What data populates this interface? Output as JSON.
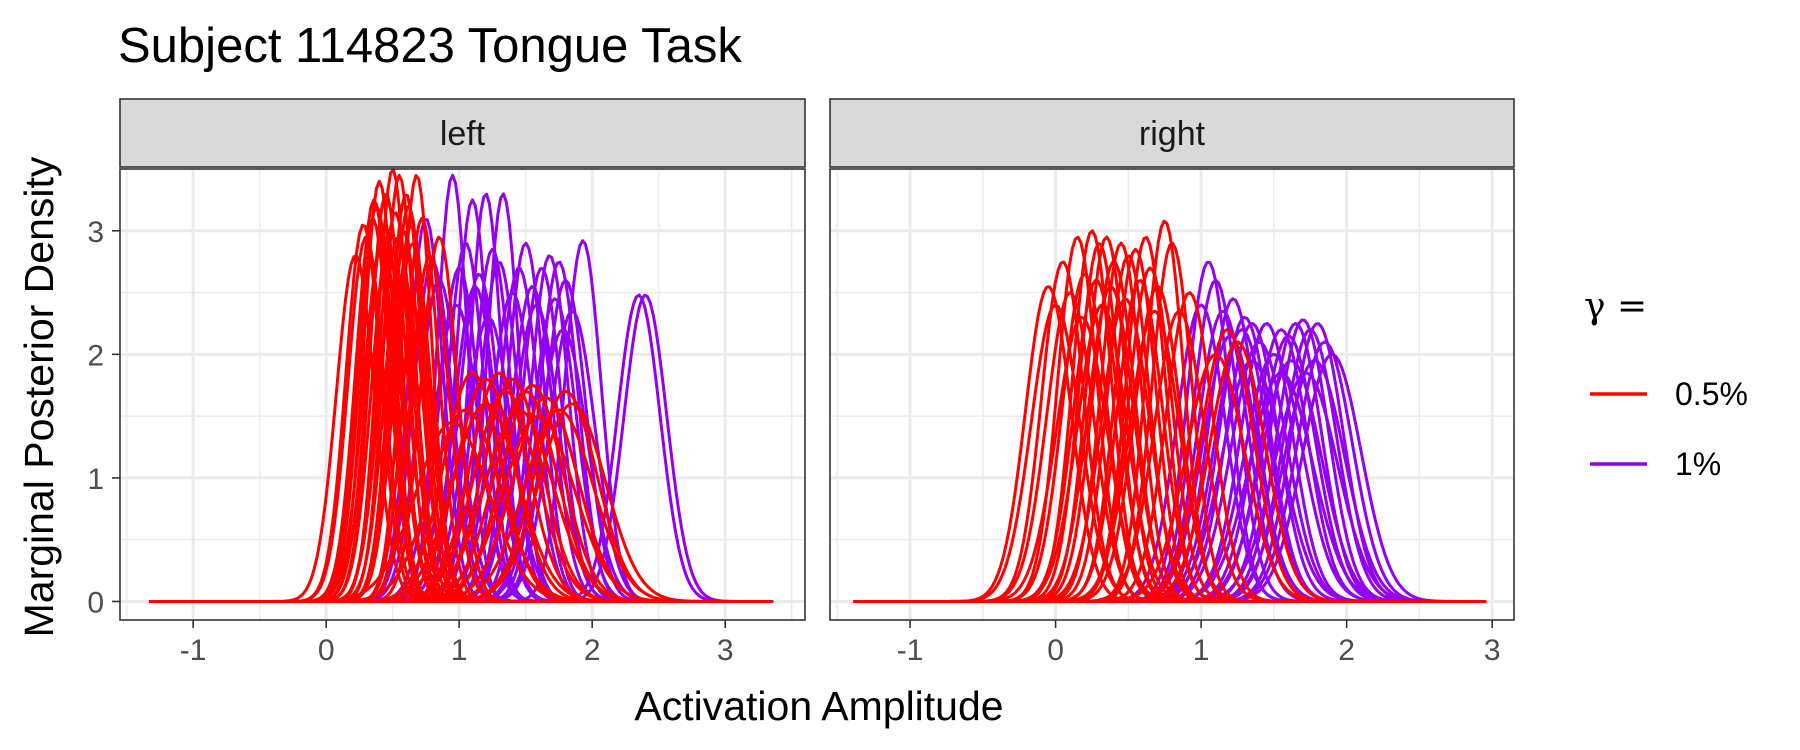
{
  "chart_data": {
    "type": "line",
    "title": "Subject 114823 Tongue Task",
    "xlabel": "Activation Amplitude",
    "ylabel": "Marginal Posterior Density",
    "ylim": [
      -0.15,
      3.5
    ],
    "yticks": [
      0,
      1,
      2,
      3
    ],
    "ytick_labels": [
      "0",
      "1",
      "2",
      "3"
    ],
    "grid": true,
    "legend": {
      "title": "γ =",
      "position": "right",
      "entries": [
        {
          "label": "0.5%",
          "color": "#ff0000"
        },
        {
          "label": "1%",
          "color": "#9400f0"
        }
      ]
    },
    "panels": [
      {
        "strip": "left",
        "xlim": [
          -1.55,
          3.6
        ],
        "xticks": [
          -1,
          0,
          1,
          2,
          3
        ],
        "xtick_labels": [
          "-1",
          "0",
          "1",
          "2",
          "3"
        ],
        "x_support": [
          -1.32,
          3.35
        ],
        "series": [
          {
            "name": "1%",
            "color": "#9400f0",
            "peaks": [
              [
                0.95,
                3.45
              ],
              [
                1.1,
                3.25
              ],
              [
                1.2,
                3.3
              ],
              [
                1.33,
                3.3
              ],
              [
                0.75,
                3.1
              ],
              [
                1.05,
                2.9
              ],
              [
                1.25,
                2.85
              ],
              [
                1.45,
                2.7
              ],
              [
                1.55,
                2.55
              ],
              [
                1.68,
                2.8
              ],
              [
                1.75,
                2.75
              ],
              [
                1.8,
                2.6
              ],
              [
                1.93,
                2.92
              ],
              [
                2.35,
                2.48
              ],
              [
                2.4,
                2.48
              ],
              [
                0.85,
                2.6
              ],
              [
                1.0,
                2.7
              ],
              [
                1.15,
                2.65
              ],
              [
                1.3,
                2.75
              ],
              [
                1.5,
                2.9
              ],
              [
                1.62,
                2.7
              ],
              [
                1.72,
                2.45
              ],
              [
                1.85,
                2.35
              ],
              [
                0.98,
                2.4
              ],
              [
                1.4,
                2.5
              ],
              [
                1.22,
                2.3
              ],
              [
                1.58,
                2.4
              ],
              [
                0.8,
                2.75
              ],
              [
                1.12,
                2.55
              ],
              [
                1.78,
                2.2
              ]
            ]
          },
          {
            "name": "0.5%",
            "color": "#ff0000",
            "peaks": [
              [
                0.5,
                3.5
              ],
              [
                0.55,
                3.45
              ],
              [
                0.68,
                3.45
              ],
              [
                0.4,
                3.4
              ],
              [
                0.28,
                3.05
              ],
              [
                0.35,
                3.1
              ],
              [
                0.45,
                3.3
              ],
              [
                0.6,
                3.3
              ],
              [
                0.62,
                3.2
              ],
              [
                0.72,
                3.1
              ],
              [
                0.85,
                2.95
              ],
              [
                0.22,
                2.8
              ],
              [
                0.3,
                2.95
              ],
              [
                0.38,
                3.2
              ],
              [
                0.48,
                3.0
              ],
              [
                0.52,
                3.15
              ],
              [
                0.58,
                3.0
              ],
              [
                0.42,
                2.9
              ],
              [
                0.65,
                2.9
              ],
              [
                0.78,
                2.8
              ],
              [
                1.1,
                1.85
              ],
              [
                1.2,
                1.8
              ],
              [
                1.3,
                1.85
              ],
              [
                1.4,
                1.8
              ],
              [
                1.5,
                1.7
              ],
              [
                1.65,
                1.65
              ],
              [
                1.8,
                1.7
              ],
              [
                1.85,
                1.6
              ],
              [
                1.2,
                1.6
              ],
              [
                1.45,
                1.55
              ],
              [
                1.6,
                1.5
              ],
              [
                1.35,
                1.7
              ],
              [
                1.05,
                1.55
              ],
              [
                1.75,
                1.55
              ],
              [
                0.95,
                1.45
              ],
              [
                1.55,
                1.75
              ],
              [
                0.36,
                3.25
              ],
              [
                0.44,
                3.05
              ],
              [
                0.54,
                2.95
              ],
              [
                0.64,
                3.05
              ]
            ]
          }
        ]
      },
      {
        "strip": "right",
        "xlim": [
          -1.55,
          3.15
        ],
        "xticks": [
          -1,
          0,
          1,
          2,
          3
        ],
        "xtick_labels": [
          "-1",
          "0",
          "1",
          "2",
          "3"
        ],
        "x_support": [
          -1.38,
          2.95
        ],
        "series": [
          {
            "name": "1%",
            "color": "#9400f0",
            "peaks": [
              [
                1.05,
                2.75
              ],
              [
                1.1,
                2.6
              ],
              [
                1.22,
                2.45
              ],
              [
                1.3,
                2.3
              ],
              [
                1.35,
                2.25
              ],
              [
                1.45,
                2.25
              ],
              [
                1.55,
                2.2
              ],
              [
                1.6,
                2.15
              ],
              [
                1.65,
                2.25
              ],
              [
                1.7,
                2.28
              ],
              [
                1.75,
                2.2
              ],
              [
                1.8,
                2.25
              ],
              [
                1.85,
                2.1
              ],
              [
                1.9,
                2.0
              ],
              [
                1.0,
                2.4
              ],
              [
                1.15,
                2.35
              ],
              [
                1.28,
                2.2
              ],
              [
                1.4,
                2.1
              ],
              [
                1.5,
                2.0
              ],
              [
                1.62,
                1.95
              ],
              [
                1.72,
                1.85
              ],
              [
                1.2,
                2.15
              ],
              [
                1.35,
                1.95
              ],
              [
                1.55,
                1.85
              ],
              [
                1.78,
                1.95
              ]
            ]
          },
          {
            "name": "0.5%",
            "color": "#ff0000",
            "peaks": [
              [
                -0.05,
                2.55
              ],
              [
                0.05,
                2.75
              ],
              [
                0.15,
                2.95
              ],
              [
                0.25,
                3.0
              ],
              [
                0.3,
                2.9
              ],
              [
                0.35,
                2.95
              ],
              [
                0.45,
                2.9
              ],
              [
                0.55,
                2.85
              ],
              [
                0.62,
                2.95
              ],
              [
                0.75,
                3.08
              ],
              [
                0.8,
                2.9
              ],
              [
                0.4,
                2.75
              ],
              [
                0.5,
                2.8
              ],
              [
                0.2,
                2.65
              ],
              [
                0.1,
                2.5
              ],
              [
                0.65,
                2.7
              ],
              [
                0.0,
                2.4
              ],
              [
                0.28,
                2.6
              ],
              [
                0.38,
                2.55
              ],
              [
                0.58,
                2.6
              ],
              [
                0.7,
                2.55
              ],
              [
                0.92,
                2.5
              ],
              [
                1.18,
                2.2
              ],
              [
                1.25,
                2.1
              ],
              [
                0.85,
                2.35
              ],
              [
                0.48,
                2.45
              ],
              [
                0.18,
                2.3
              ],
              [
                0.32,
                2.4
              ],
              [
                0.68,
                2.35
              ],
              [
                1.1,
                2.0
              ]
            ]
          }
        ]
      }
    ]
  }
}
